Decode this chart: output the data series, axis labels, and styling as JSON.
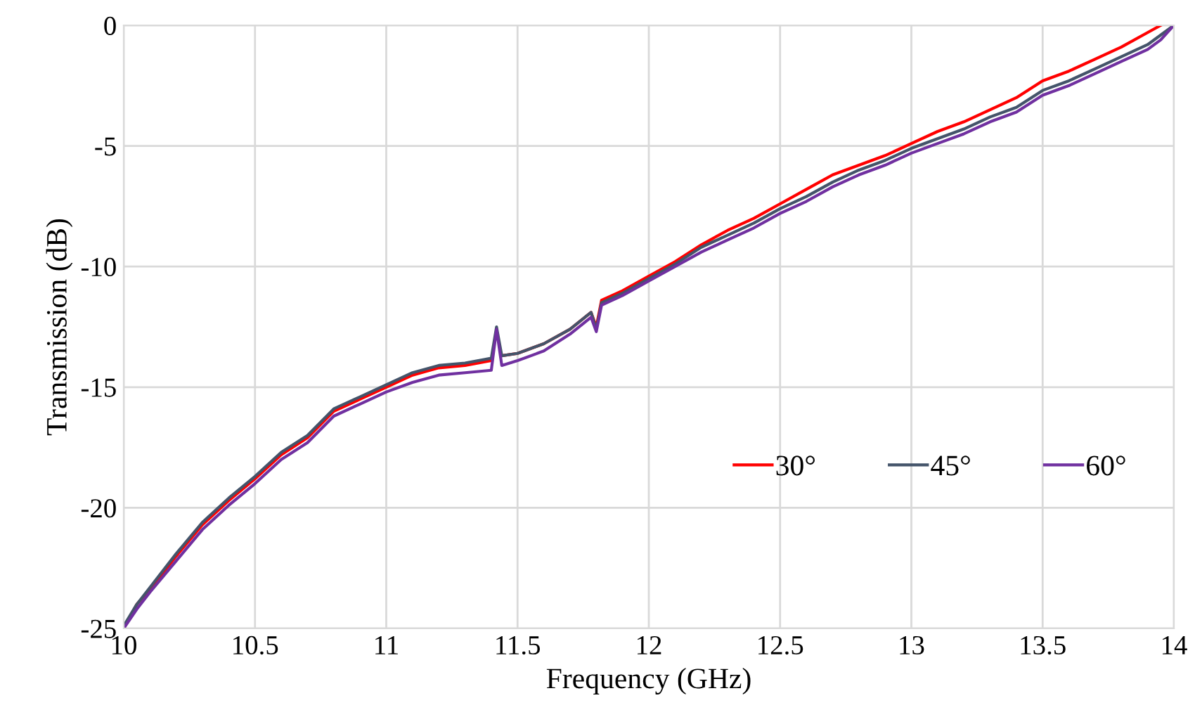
{
  "chart_data": {
    "type": "line",
    "xlabel": "Frequency (GHz)",
    "ylabel": "Transmission (dB)",
    "x": [
      10,
      10.05,
      10.1,
      10.2,
      10.3,
      10.4,
      10.5,
      10.6,
      10.7,
      10.8,
      10.9,
      11.0,
      11.1,
      11.2,
      11.3,
      11.4,
      11.42,
      11.44,
      11.5,
      11.6,
      11.7,
      11.78,
      11.8,
      11.82,
      11.9,
      12.0,
      12.1,
      12.2,
      12.3,
      12.4,
      12.5,
      12.6,
      12.7,
      12.8,
      12.9,
      13.0,
      13.1,
      13.2,
      13.3,
      13.4,
      13.5,
      13.6,
      13.7,
      13.8,
      13.9,
      13.95,
      14.0
    ],
    "series": [
      {
        "name": "30°",
        "color": "#ff0000",
        "values": [
          -25,
          -24,
          -23.4,
          -22.0,
          -20.7,
          -19.7,
          -18.8,
          -17.8,
          -17.1,
          -16.0,
          -15.5,
          -15.0,
          -14.5,
          -14.2,
          -14.1,
          -13.9,
          null,
          -13.7,
          -13.6,
          -13.2,
          -12.6,
          -11.9,
          -12.5,
          -11.4,
          -11.0,
          -10.4,
          -9.8,
          -9.1,
          -8.5,
          -8.0,
          -7.4,
          -6.8,
          -6.2,
          -5.8,
          -5.4,
          -4.9,
          -4.4,
          -4.0,
          -3.5,
          -3.0,
          -2.3,
          -1.9,
          -1.4,
          -0.9,
          -0.3,
          0.0,
          null
        ]
      },
      {
        "name": "45°",
        "color": "#44546a",
        "values": [
          -24.9,
          -24.0,
          -23.3,
          -21.9,
          -20.6,
          -19.6,
          -18.7,
          -17.7,
          -17.0,
          -15.9,
          -15.4,
          -14.9,
          -14.4,
          -14.1,
          -14.0,
          -13.8,
          -12.5,
          -13.7,
          -13.6,
          -13.2,
          -12.6,
          -11.9,
          -12.6,
          -11.5,
          -11.1,
          -10.5,
          -9.9,
          -9.2,
          -8.7,
          -8.2,
          -7.6,
          -7.1,
          -6.5,
          -6.0,
          -5.6,
          -5.1,
          -4.7,
          -4.3,
          -3.8,
          -3.4,
          -2.7,
          -2.3,
          -1.8,
          -1.3,
          -0.8,
          -0.4,
          0.0
        ]
      },
      {
        "name": "60°",
        "color": "#7030a0",
        "values": [
          -25,
          -24.2,
          -23.5,
          -22.2,
          -20.9,
          -19.9,
          -19.0,
          -18.0,
          -17.3,
          -16.2,
          -15.7,
          -15.2,
          -14.8,
          -14.5,
          -14.4,
          -14.3,
          -12.6,
          -14.1,
          -13.9,
          -13.5,
          -12.8,
          -12.1,
          -12.7,
          -11.6,
          -11.2,
          -10.6,
          -10.0,
          -9.4,
          -8.9,
          -8.4,
          -7.8,
          -7.3,
          -6.7,
          -6.2,
          -5.8,
          -5.3,
          -4.9,
          -4.5,
          -4.0,
          -3.6,
          -2.9,
          -2.5,
          -2.0,
          -1.5,
          -1.0,
          -0.6,
          0.0
        ]
      }
    ],
    "xlim": [
      10,
      14
    ],
    "xticks": [
      10,
      10.5,
      11,
      11.5,
      12,
      12.5,
      13,
      13.5,
      14
    ],
    "ylim": [
      -25,
      0
    ],
    "yticks": [
      -25,
      -20,
      -15,
      -10,
      -5,
      0
    ],
    "grid": true,
    "legend": "bottom right",
    "marker": "none",
    "line_style": "solid"
  }
}
